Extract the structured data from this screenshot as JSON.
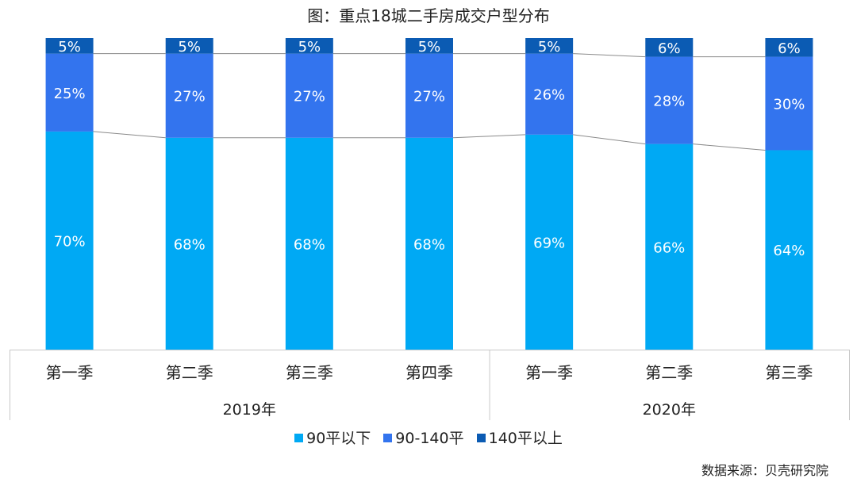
{
  "chart_data": {
    "type": "bar",
    "stacked": true,
    "title": "图：重点18城二手房成交户型分布",
    "categories": [
      "第一季",
      "第二季",
      "第三季",
      "第四季",
      "第一季",
      "第二季",
      "第三季"
    ],
    "groups": [
      {
        "label": "2019年",
        "count": 4
      },
      {
        "label": "2020年",
        "count": 3
      }
    ],
    "series": [
      {
        "name": "90平以下",
        "color": "#00a9f4",
        "values": [
          70,
          68,
          68,
          68,
          69,
          66,
          64
        ]
      },
      {
        "name": "90-140平",
        "color": "#3374ee",
        "values": [
          25,
          27,
          27,
          27,
          26,
          28,
          30
        ]
      },
      {
        "name": "140平以上",
        "color": "#0b5bb3",
        "values": [
          5,
          5,
          5,
          5,
          5,
          6,
          6
        ]
      }
    ],
    "value_suffix": "%",
    "ylim": [
      0,
      100
    ],
    "grid": false,
    "legend_position": "bottom",
    "series_lines": true
  },
  "source": "数据来源：贝壳研究院"
}
